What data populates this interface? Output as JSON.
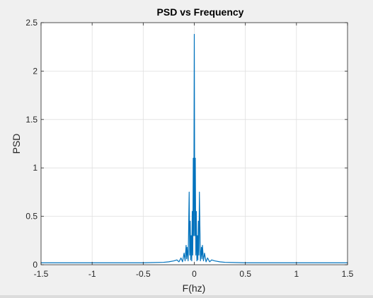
{
  "chart_data": {
    "type": "line",
    "title": "PSD vs Frequency",
    "xlabel": "F(hz)",
    "ylabel": "PSD",
    "xlim": [
      -1.5,
      1.5
    ],
    "ylim": [
      0,
      2.5
    ],
    "xticks": [
      -1.5,
      -1,
      -0.5,
      0,
      0.5,
      1,
      1.5
    ],
    "xtick_labels": [
      "-1.5",
      "-1",
      "-0.5",
      "0",
      "0.5",
      "1",
      "1.5"
    ],
    "yticks": [
      0,
      0.5,
      1,
      1.5,
      2,
      2.5
    ],
    "ytick_labels": [
      "0",
      "0.5",
      "1",
      "1.5",
      "2",
      "2.5"
    ],
    "grid": true,
    "series": [
      {
        "color": "#0072BD",
        "x": [
          -1.5,
          -1.0,
          -0.5,
          -0.3,
          -0.25,
          -0.2,
          -0.17,
          -0.15,
          -0.13,
          -0.115,
          -0.1,
          -0.09,
          -0.08,
          -0.075,
          -0.07,
          -0.06,
          -0.05,
          -0.045,
          -0.04,
          -0.035,
          -0.03,
          -0.025,
          -0.02,
          -0.015,
          -0.01,
          -0.005,
          0,
          0.005,
          0.01,
          0.015,
          0.02,
          0.025,
          0.03,
          0.035,
          0.04,
          0.045,
          0.05,
          0.06,
          0.07,
          0.075,
          0.08,
          0.09,
          0.1,
          0.115,
          0.13,
          0.15,
          0.17,
          0.2,
          0.25,
          0.3,
          0.5,
          1.0,
          1.5
        ],
        "y": [
          0.02,
          0.02,
          0.02,
          0.025,
          0.03,
          0.04,
          0.05,
          0.03,
          0.07,
          0.03,
          0.12,
          0.04,
          0.2,
          0.06,
          0.18,
          0.04,
          0.75,
          0.1,
          0.45,
          0.05,
          0.3,
          0.04,
          0.55,
          0.1,
          1.1,
          0.3,
          2.38,
          0.3,
          1.1,
          0.1,
          0.55,
          0.04,
          0.3,
          0.05,
          0.45,
          0.1,
          0.75,
          0.04,
          0.18,
          0.06,
          0.2,
          0.04,
          0.12,
          0.03,
          0.07,
          0.03,
          0.05,
          0.04,
          0.03,
          0.025,
          0.02,
          0.02,
          0.02
        ]
      }
    ]
  }
}
